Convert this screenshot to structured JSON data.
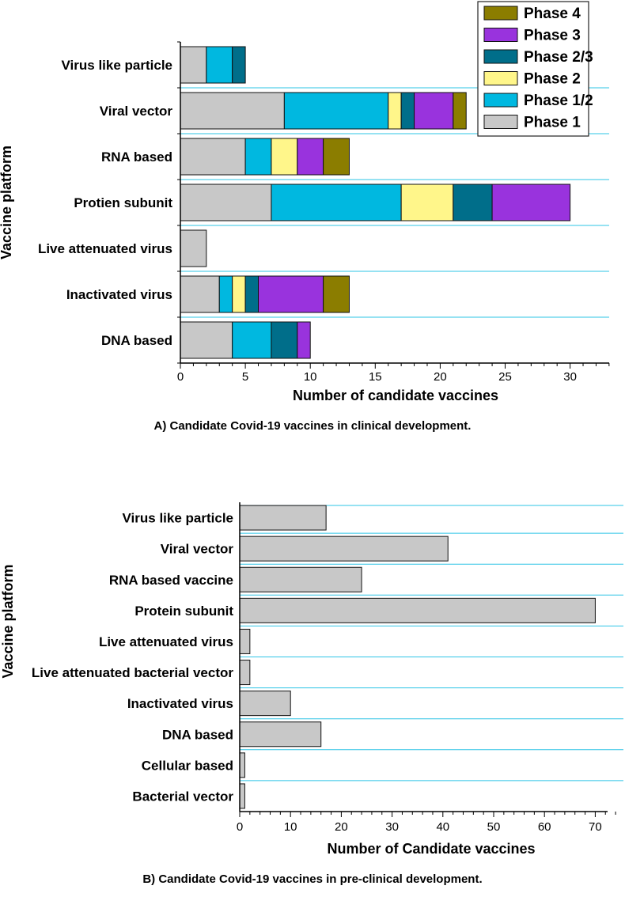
{
  "chart_data": [
    {
      "type": "bar",
      "orientation": "horizontal",
      "stacked": true,
      "caption": "A) Candidate Covid-19 vaccines in clinical development.",
      "xlabel": "Number of candidate vaccines",
      "ylabel": "Vaccine platform",
      "xlim": [
        0,
        33
      ],
      "xticks": [
        0,
        5,
        10,
        15,
        20,
        25,
        30
      ],
      "categories": [
        "Virus like particle",
        "Viral vector",
        "RNA based",
        "Protien subunit",
        "Live attenuated virus",
        "Inactivated virus",
        "DNA based"
      ],
      "series": [
        {
          "name": "Phase 1",
          "color": "#c8c8c8",
          "values": [
            2,
            8,
            5,
            7,
            2,
            3,
            4
          ]
        },
        {
          "name": "Phase 1/2",
          "color": "#00b8e0",
          "values": [
            2,
            8,
            2,
            10,
            0,
            1,
            3
          ]
        },
        {
          "name": "Phase 2",
          "color": "#fff68a",
          "values": [
            0,
            1,
            2,
            4,
            0,
            1,
            0
          ]
        },
        {
          "name": "Phase 2/3",
          "color": "#006e8a",
          "values": [
            1,
            1,
            0,
            3,
            0,
            1,
            2
          ]
        },
        {
          "name": "Phase 3",
          "color": "#9933dd",
          "values": [
            0,
            3,
            2,
            6,
            0,
            5,
            1
          ]
        },
        {
          "name": "Phase 4",
          "color": "#8b7d00",
          "values": [
            0,
            1,
            2,
            0,
            0,
            2,
            0
          ]
        }
      ],
      "legend_order": [
        "Phase 4",
        "Phase 3",
        "Phase 2/3",
        "Phase 2",
        "Phase 1/2",
        "Phase 1"
      ],
      "legend_position": "top-right"
    },
    {
      "type": "bar",
      "orientation": "horizontal",
      "stacked": false,
      "caption": "B) Candidate Covid-19 vaccines in pre-clinical development.",
      "xlabel": "Number of Candidate vaccines",
      "ylabel": "Vaccine platform",
      "xlim": [
        0,
        76
      ],
      "xticks": [
        0,
        10,
        20,
        30,
        40,
        50,
        60,
        70
      ],
      "categories": [
        "Virus like particle",
        "Viral vector",
        "RNA based vaccine",
        "Protein subunit",
        "Live attenuated virus",
        "Live attenuated bacterial vector",
        "Inactivated virus",
        "DNA based",
        "Cellular based",
        "Bacterial vector"
      ],
      "values": [
        17,
        41,
        24,
        70,
        2,
        2,
        10,
        16,
        1,
        1
      ],
      "color": "#c8c8c8"
    }
  ]
}
